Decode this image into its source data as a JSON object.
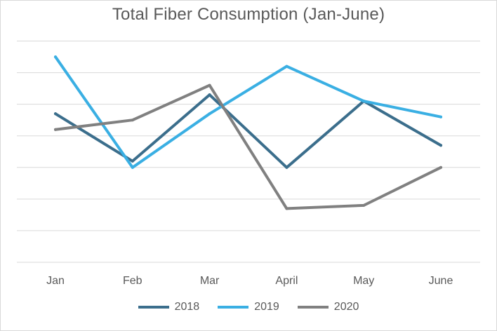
{
  "chart_data": {
    "type": "line",
    "title": "Total Fiber Consumption  (Jan-June)",
    "xlabel": "",
    "ylabel": "",
    "categories": [
      "Jan",
      "Feb",
      "Mar",
      "April",
      "May",
      "June"
    ],
    "ylim": [
      0,
      7.5
    ],
    "y_ticks": [
      0,
      1,
      2,
      3,
      4,
      5,
      6,
      7
    ],
    "y_tick_labels_visible": false,
    "grid": "horizontal",
    "legend_position": "bottom",
    "series": [
      {
        "name": "2018",
        "color": "#3B6E8C",
        "values": [
          4.7,
          3.2,
          5.3,
          3.0,
          5.1,
          3.7
        ]
      },
      {
        "name": "2019",
        "color": "#3AAFE3",
        "values": [
          6.5,
          3.0,
          4.7,
          6.2,
          5.1,
          4.6
        ]
      },
      {
        "name": "2020",
        "color": "#808080",
        "values": [
          4.2,
          4.5,
          5.6,
          1.7,
          1.8,
          3.0
        ]
      }
    ]
  }
}
